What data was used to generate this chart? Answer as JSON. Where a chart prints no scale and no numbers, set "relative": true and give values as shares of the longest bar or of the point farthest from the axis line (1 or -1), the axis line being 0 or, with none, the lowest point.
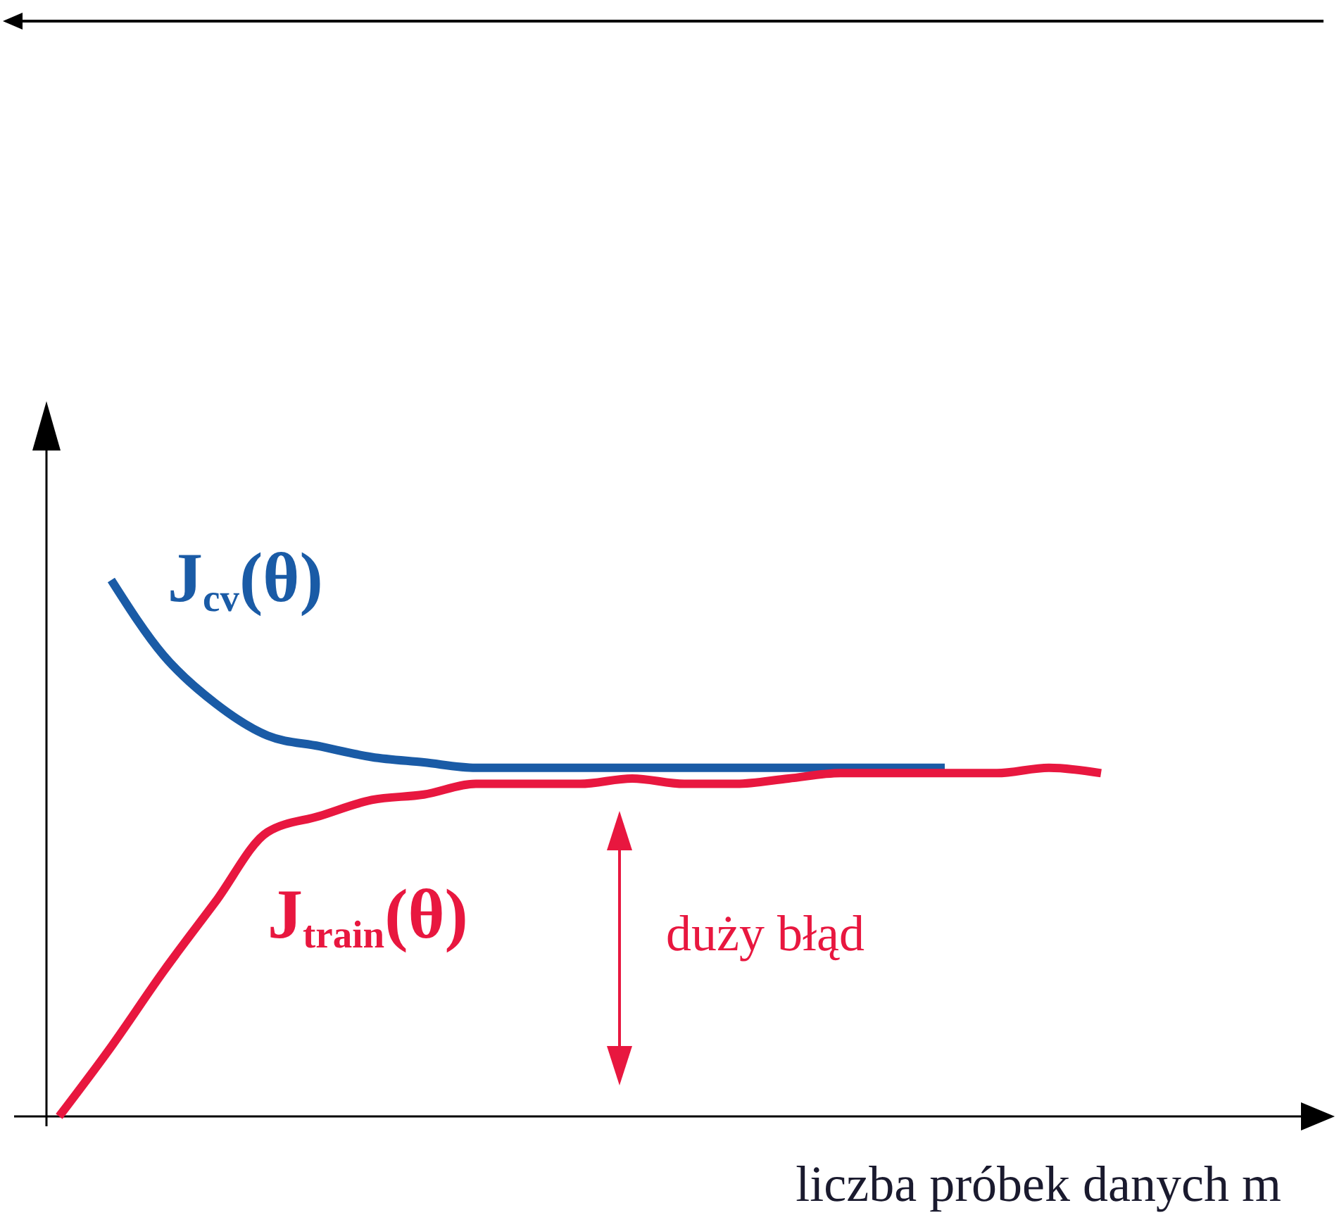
{
  "chart_data": {
    "type": "line",
    "relative": true,
    "xlabel": "liczba próbek danych m",
    "annotations": [
      "duży błąd"
    ],
    "categories": [
      null,
      null,
      null,
      null,
      null,
      null,
      null,
      null,
      null,
      null,
      null,
      null,
      null,
      null,
      null,
      null,
      null,
      null,
      null,
      null,
      null
    ],
    "series": [
      {
        "name": "J$_{cv}$(θ)",
        "color": "#1a5ba6",
        "values": [
          null,
          1.0,
          0.86,
          0.77,
          0.71,
          0.69,
          0.67,
          0.66,
          0.65,
          0.65,
          0.65,
          0.65,
          0.65,
          0.65,
          0.65,
          0.65,
          0.65,
          0.65,
          null,
          null,
          null
        ]
      },
      {
        "name": "J$_{train}$(θ)",
        "color": "#e8173f",
        "values": [
          0.0,
          0.13,
          0.27,
          0.4,
          0.53,
          0.56,
          0.59,
          0.6,
          0.62,
          0.62,
          0.62,
          0.63,
          0.62,
          0.62,
          0.63,
          0.64,
          0.64,
          0.64,
          0.64,
          0.65,
          0.64
        ]
      }
    ]
  }
}
